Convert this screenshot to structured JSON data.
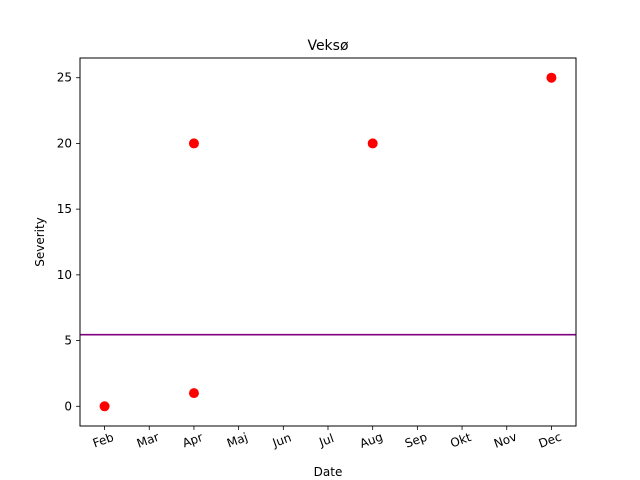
{
  "chart_data": {
    "type": "scatter",
    "title": "Veksø",
    "xlabel": "Date",
    "ylabel": "Severity",
    "x_ticks": [
      "Feb",
      "Mar",
      "Apr",
      "Maj",
      "Jun",
      "Jul",
      "Aug",
      "Sep",
      "Okt",
      "Nov",
      "Dec"
    ],
    "y_ticks": [
      0,
      5,
      10,
      15,
      20,
      25
    ],
    "xlim": [
      -0.55,
      10.55
    ],
    "ylim": [
      -1.5,
      26.5
    ],
    "grid": false,
    "series": [
      {
        "color": "#ff0000",
        "points": [
          {
            "x": "Feb",
            "y": 0
          },
          {
            "x": "Apr",
            "y": 20
          },
          {
            "x": "Apr",
            "y": 1
          },
          {
            "x": "Aug",
            "y": 20
          },
          {
            "x": "Dec",
            "y": 25
          }
        ]
      }
    ],
    "reference_lines": [
      {
        "orientation": "horizontal",
        "y": 5.45,
        "color": "#800080"
      }
    ]
  }
}
